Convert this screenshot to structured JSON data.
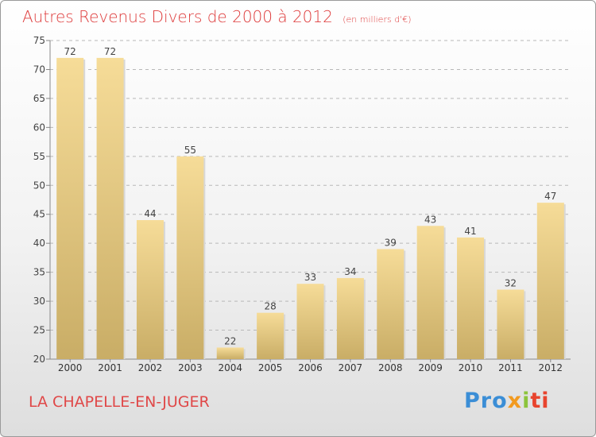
{
  "header": {
    "title": "Autres Revenus Divers de 2000 à 2012",
    "subtitle": "(en milliers d'€)"
  },
  "footer": {
    "commune": "LA CHAPELLE-EN-JUGER",
    "logo": {
      "part1": "Pro",
      "part2": "x",
      "part3": "i",
      "part4": "ti"
    }
  },
  "colors": {
    "title": "#de3b3b",
    "bar_top": "#f6dc98",
    "bar_bottom": "#c9ad66",
    "grid": "#b8b8b8"
  },
  "chart_data": {
    "type": "bar",
    "categories": [
      "2000",
      "2001",
      "2002",
      "2003",
      "2004",
      "2005",
      "2006",
      "2007",
      "2008",
      "2009",
      "2010",
      "2011",
      "2012"
    ],
    "values": [
      72,
      72,
      44,
      55,
      22,
      28,
      33,
      34,
      39,
      43,
      41,
      32,
      47
    ],
    "title": "Autres Revenus Divers de 2000 à 2012",
    "xlabel": "",
    "ylabel": "",
    "ylim": [
      20,
      75
    ],
    "yticks": [
      20,
      25,
      30,
      35,
      40,
      45,
      50,
      55,
      60,
      65,
      70,
      75
    ],
    "grid": true,
    "legend": "none"
  }
}
